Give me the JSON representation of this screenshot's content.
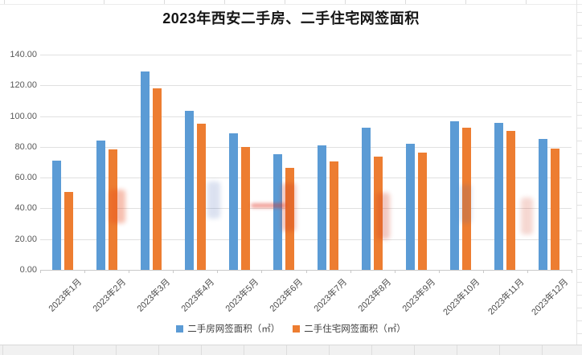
{
  "chart_data": {
    "type": "bar",
    "title": "2023年西安二手房、二手住宅网签面积",
    "categories": [
      "2023年1月",
      "2023年2月",
      "2023年3月",
      "2023年4月",
      "2023年5月",
      "2023年6月",
      "2023年7月",
      "2023年8月",
      "2023年9月",
      "2023年10月",
      "2023年11月",
      "2023年12月"
    ],
    "series": [
      {
        "name": "二手房网签面积（㎡）",
        "color": "#5B9BD5",
        "values": [
          71.1,
          84.0,
          129.0,
          103.4,
          88.8,
          75.3,
          80.9,
          92.5,
          82.2,
          96.7,
          95.6,
          85.0
        ]
      },
      {
        "name": "二手住宅网签面积（㎡）",
        "color": "#ED7D31",
        "values": [
          50.7,
          78.2,
          117.9,
          95.3,
          80.1,
          66.6,
          70.3,
          73.5,
          76.2,
          92.6,
          90.4,
          78.8
        ]
      }
    ],
    "xlabel": "",
    "ylabel": "",
    "ylim": [
      0,
      140
    ],
    "ytick_step": 20,
    "ytick_labels": [
      "140.00",
      "120.00",
      "100.00",
      "80.00",
      "60.00",
      "40.00",
      "20.00",
      "0.00"
    ],
    "grid": true,
    "legend_position": "bottom"
  }
}
